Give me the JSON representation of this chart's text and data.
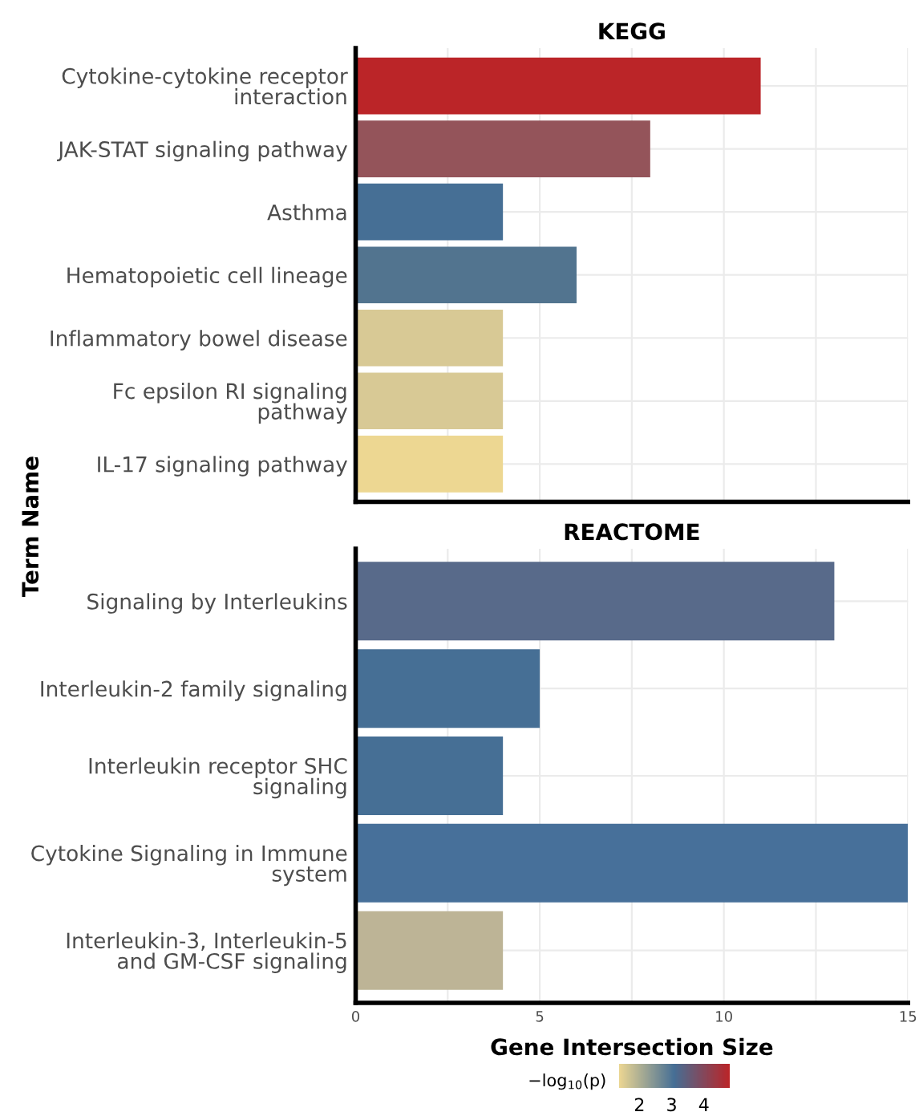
{
  "chart_data": [
    {
      "type": "bar",
      "orientation": "horizontal",
      "title": "KEGG",
      "ylabel": "Term Name",
      "categories": [
        "Cytokine-cytokine receptor\ninteraction",
        "JAK-STAT signaling pathway",
        "Asthma",
        "Hematopoietic cell lineage",
        "Inflammatory bowel disease",
        "Fc epsilon RI signaling\npathway",
        "IL-17 signaling pathway"
      ],
      "values": [
        11,
        8,
        4,
        6,
        4,
        4,
        4
      ],
      "colors": [
        "#bb2528",
        "#94545a",
        "#466f95",
        "#52748f",
        "#d8c995",
        "#d8c995",
        "#edd792"
      ],
      "xlim": [
        0,
        15
      ],
      "xticks": [
        0,
        5,
        10,
        15
      ],
      "grid": true,
      "tick_labels": "y"
    },
    {
      "type": "bar",
      "orientation": "horizontal",
      "title": "REACTOME",
      "xlabel": "Gene Intersection Size",
      "categories": [
        "Signaling by Interleukins",
        "Interleukin-2 family signaling",
        "Interleukin receptor SHC\nsignaling",
        "Cytokine Signaling in Immune\nsystem",
        "Interleukin-3, Interleukin-5\nand GM-CSF signaling"
      ],
      "values": [
        13,
        5,
        4,
        15,
        4
      ],
      "colors": [
        "#586a8a",
        "#466f95",
        "#466f95",
        "#47709a",
        "#bdb496"
      ],
      "xlim": [
        0,
        15
      ],
      "xticks": [
        0,
        5,
        10,
        15
      ],
      "grid": true,
      "clabel": "−log$_{10}$(p)",
      "clim": [
        1.35,
        4.8
      ],
      "cticks": [
        2,
        3,
        4
      ]
    }
  ]
}
